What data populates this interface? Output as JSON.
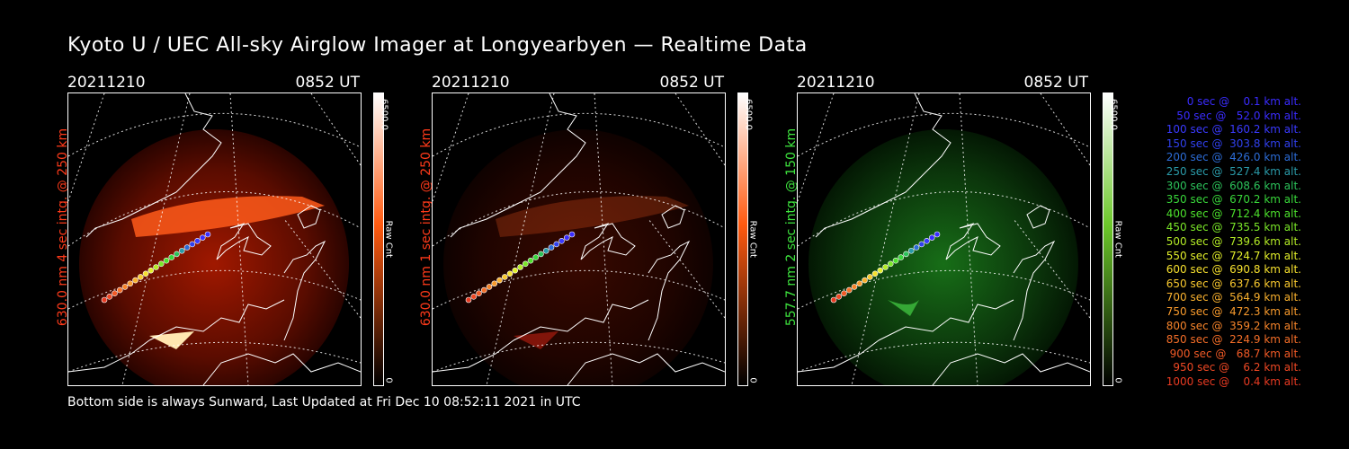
{
  "title": "Kyoto U / UEC All-sky Airglow Imager at Longyearbyen — Realtime Data",
  "footer": "Bottom side is always Sunward, Last Updated at Fri Dec 10 08:52:11 2021 in UTC",
  "panels": [
    {
      "date": "20211210",
      "time": "0852 UT",
      "side_label": "630.0 nm 4 sec intg. @ 250 km",
      "side_color": "#ff3a1a",
      "cbar_max": "6500.0",
      "cbar_min": "0",
      "cbar_unit": "Raw Cnt",
      "cbar_top": "#ffffff",
      "cbar_mid": "#ff5a10",
      "cbar_bottom": "#000000",
      "emission": "red",
      "brightness": "strong"
    },
    {
      "date": "20211210",
      "time": "0852 UT",
      "side_label": "630.0 nm 1 sec intg. @ 250 km",
      "side_color": "#ff3a1a",
      "cbar_max": "6500.0",
      "cbar_min": "0",
      "cbar_unit": "Raw Cnt",
      "cbar_top": "#ffffff",
      "cbar_mid": "#ff5a10",
      "cbar_bottom": "#000000",
      "emission": "red",
      "brightness": "faint"
    },
    {
      "date": "20211210",
      "time": "0852 UT",
      "side_label": "557.7 nm 2 sec intg. @ 150 km",
      "side_color": "#3ee63e",
      "cbar_max": "6500.0",
      "cbar_min": "0",
      "cbar_unit": "Raw Cnt",
      "cbar_top": "#ffffff",
      "cbar_mid": "#6cc82a",
      "cbar_bottom": "#000000",
      "emission": "green",
      "brightness": "medium"
    }
  ],
  "legend": [
    {
      "text": "0 sec @    0.1 km alt.",
      "color": "#3a2cff"
    },
    {
      "text": "50 sec @   52.0 km alt.",
      "color": "#3a2cff"
    },
    {
      "text": "100 sec @  160.2 km alt.",
      "color": "#3a3aff"
    },
    {
      "text": "150 sec @  303.8 km alt.",
      "color": "#3040ee"
    },
    {
      "text": "200 sec @  426.0 km alt.",
      "color": "#2c6cd6"
    },
    {
      "text": "250 sec @  527.4 km alt.",
      "color": "#2a9aa8"
    },
    {
      "text": "300 sec @  608.6 km alt.",
      "color": "#2cc25a"
    },
    {
      "text": "350 sec @  670.2 km alt.",
      "color": "#38d63a"
    },
    {
      "text": "400 sec @  712.4 km alt.",
      "color": "#4ce02c"
    },
    {
      "text": "450 sec @  735.5 km alt.",
      "color": "#7ae628"
    },
    {
      "text": "500 sec @  739.6 km alt.",
      "color": "#b4ec26"
    },
    {
      "text": "550 sec @  724.7 km alt.",
      "color": "#e2ee2a"
    },
    {
      "text": "600 sec @  690.8 km alt.",
      "color": "#f6e02e"
    },
    {
      "text": "650 sec @  637.6 km alt.",
      "color": "#f8c82e"
    },
    {
      "text": "700 sec @  564.9 km alt.",
      "color": "#f8b02e"
    },
    {
      "text": "750 sec @  472.3 km alt.",
      "color": "#f89a2c"
    },
    {
      "text": "800 sec @  359.2 km alt.",
      "color": "#f6842a"
    },
    {
      "text": "850 sec @  224.9 km alt.",
      "color": "#f46e28"
    },
    {
      "text": "900 sec @   68.7 km alt.",
      "color": "#f25a26"
    },
    {
      "text": "950 sec @    6.2 km alt.",
      "color": "#ee4824"
    },
    {
      "text": "1000 sec @    0.4 km alt.",
      "color": "#e83a22"
    }
  ]
}
